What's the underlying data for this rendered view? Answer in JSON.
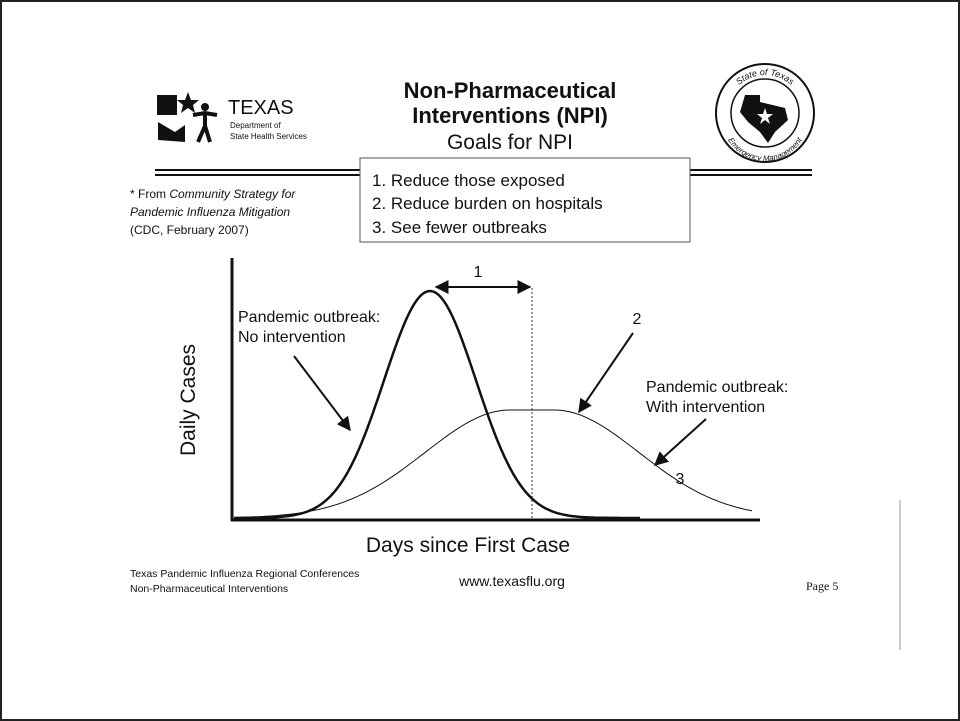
{
  "header": {
    "logo": {
      "name": "TEXAS",
      "line1": "Department of",
      "line2": "State Health Services"
    },
    "title": [
      "Non-Pharmaceutical",
      "Interventions (NPI)"
    ],
    "subtitle": "Goals for NPI",
    "seal": {
      "top": "State of Texas",
      "bottom": "Emergency Management"
    }
  },
  "goals": [
    "1. Reduce those exposed",
    "2. Reduce burden on hospitals",
    "3. See fewer outbreaks"
  ],
  "source": {
    "prefix": "* From ",
    "italic1": "Community Strategy for",
    "italic2": "Pandemic Influenza Mitigation",
    "line3": "(CDC, February 2007)"
  },
  "diagram": {
    "y_label": "Daily Cases",
    "x_label": "Days since First Case",
    "no_intervention": [
      "Pandemic outbreak:",
      "No intervention"
    ],
    "with_intervention": [
      "Pandemic outbreak:",
      "With intervention"
    ],
    "markers": [
      "1",
      "2",
      "3"
    ]
  },
  "footer": {
    "left": [
      "Texas Pandemic Influenza Regional Conferences",
      "Non-Pharmaceutical Interventions"
    ],
    "center": "www.texasflu.org",
    "page": "Page 5"
  }
}
